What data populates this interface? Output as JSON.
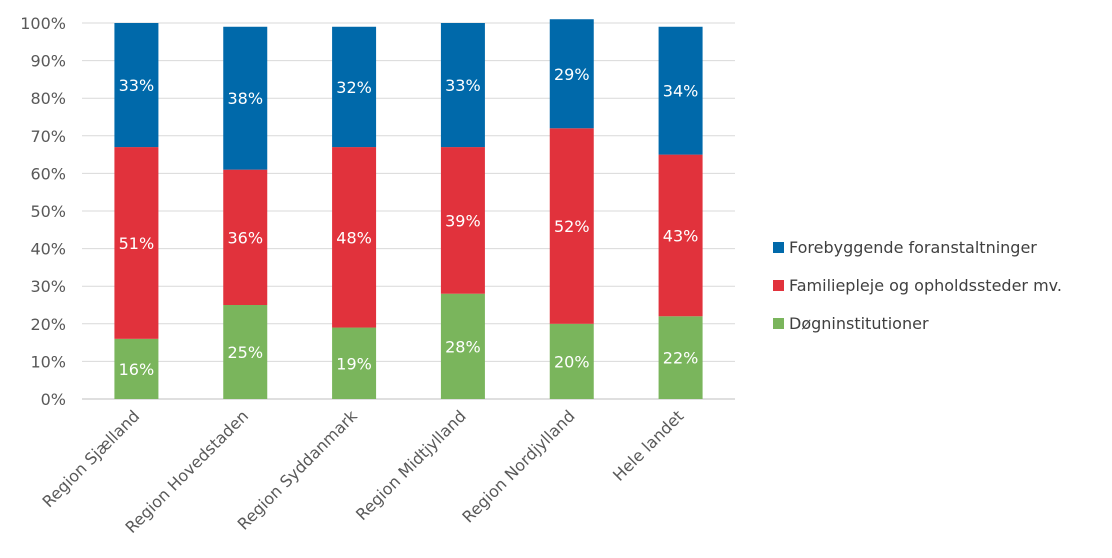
{
  "chart_data": {
    "type": "bar",
    "stacked": true,
    "categories": [
      "Region Sjælland",
      "Region Hovedstaden",
      "Region Syddanmark",
      "Region Midtjylland",
      "Region Nordjylland",
      "Hele landet"
    ],
    "series": [
      {
        "name": "Døgninstitutioner",
        "color": "#7ab55c",
        "values": [
          16,
          25,
          19,
          28,
          20,
          22
        ],
        "labels": [
          "16%",
          "25%",
          "19%",
          "28%",
          "20%",
          "22%"
        ]
      },
      {
        "name": "Familiepleje og opholdssteder mv.",
        "color": "#e1323c",
        "values": [
          51,
          36,
          48,
          39,
          52,
          43
        ],
        "labels": [
          "51%",
          "36%",
          "48%",
          "39%",
          "52%",
          "43%"
        ]
      },
      {
        "name": "Forebyggende foranstaltninger",
        "color": "#0069aa",
        "values": [
          33,
          38,
          32,
          33,
          29,
          34
        ],
        "labels": [
          "33%",
          "38%",
          "32%",
          "33%",
          "29%",
          "34%"
        ]
      }
    ],
    "ylim": [
      0,
      100
    ],
    "yticks": [
      "0%",
      "10%",
      "20%",
      "30%",
      "40%",
      "50%",
      "60%",
      "70%",
      "80%",
      "90%",
      "100%"
    ],
    "grid": true,
    "legend_position": "right",
    "legend_order": [
      "Forebyggende foranstaltninger",
      "Familiepleje og opholdssteder mv.",
      "Døgninstitutioner"
    ]
  }
}
